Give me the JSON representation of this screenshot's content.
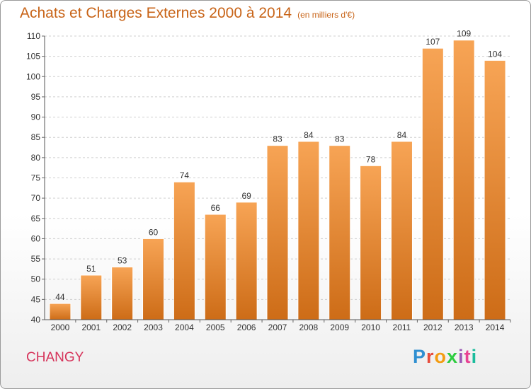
{
  "header": {
    "title": "Achats et Charges Externes 2000 à 2014",
    "subtitle": "(en milliers d'€)"
  },
  "footer": {
    "commune": "CHANGY",
    "brand": "Proxiti"
  },
  "colors": {
    "title": "#c86418",
    "commune": "#d6335a",
    "bar_top": "#f7a455",
    "bar_bottom": "#cd6c17"
  },
  "chart_data": {
    "type": "bar",
    "title": "Achats et Charges Externes 2000 à 2014",
    "subtitle": "(en milliers d'€)",
    "categories": [
      "2000",
      "2001",
      "2002",
      "2003",
      "2004",
      "2005",
      "2006",
      "2007",
      "2008",
      "2009",
      "2010",
      "2011",
      "2012",
      "2013",
      "2014"
    ],
    "values": [
      44,
      51,
      53,
      60,
      74,
      66,
      69,
      83,
      84,
      83,
      78,
      84,
      107,
      109,
      104
    ],
    "xlabel": "",
    "ylabel": "",
    "ylim": [
      40,
      110
    ],
    "yticks": [
      40,
      45,
      50,
      55,
      60,
      65,
      70,
      75,
      80,
      85,
      90,
      95,
      100,
      105,
      110
    ],
    "grid": true,
    "data_labels": true
  }
}
